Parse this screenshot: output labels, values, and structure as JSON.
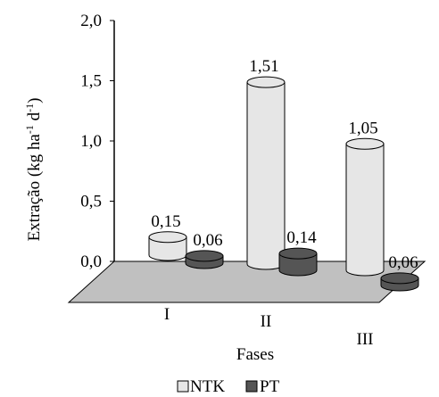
{
  "chart_data": {
    "type": "bar",
    "categories": [
      "I",
      "II",
      "III"
    ],
    "series": [
      {
        "name": "NTK",
        "values": [
          0.15,
          1.51,
          1.05
        ],
        "labels": [
          "0,15",
          "1,51",
          "1,05"
        ],
        "color": "#e6e6e6"
      },
      {
        "name": "PT",
        "values": [
          0.06,
          0.14,
          0.06
        ],
        "labels": [
          "0,06",
          "0,14",
          "0,06"
        ],
        "color": "#555555"
      }
    ],
    "ylabel": "Extração (kg ha-1 d-1)",
    "ylabel_parts": {
      "main": "Extração (kg ha",
      "exp1": "-1",
      "mid": " d",
      "exp2": "-1",
      "end": ")"
    },
    "xlabel": "Fases",
    "ylim": [
      0,
      2.0
    ],
    "yticks": [
      {
        "value": 0.0,
        "label": "0,0"
      },
      {
        "value": 0.5,
        "label": "0,5"
      },
      {
        "value": 1.0,
        "label": "1,0"
      },
      {
        "value": 1.5,
        "label": "1,5"
      },
      {
        "value": 2.0,
        "label": "2,0"
      }
    ],
    "floor_color": "#c0c0c0",
    "grid": false,
    "legend_position": "bottom-center",
    "style": "3d-cylinder"
  }
}
